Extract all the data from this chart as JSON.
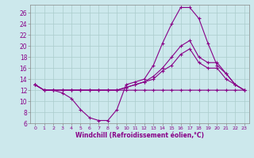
{
  "title": "",
  "xlabel": "Windchill (Refroidissement éolien,°C)",
  "background_color": "#cce8ec",
  "line_color": "#880088",
  "grid_color": "#aacccc",
  "xlim": [
    -0.5,
    23.5
  ],
  "ylim": [
    6,
    27.5
  ],
  "yticks": [
    6,
    8,
    10,
    12,
    14,
    16,
    18,
    20,
    22,
    24,
    26
  ],
  "xticks": [
    0,
    1,
    2,
    3,
    4,
    5,
    6,
    7,
    8,
    9,
    10,
    11,
    12,
    13,
    14,
    15,
    16,
    17,
    18,
    19,
    20,
    21,
    22,
    23
  ],
  "lines": [
    {
      "x": [
        0,
        1,
        2,
        3,
        4,
        5,
        6,
        7,
        8,
        9,
        10,
        11,
        12,
        13,
        14,
        15,
        16,
        17,
        18,
        19,
        20,
        21,
        22,
        23
      ],
      "y": [
        13,
        12,
        12,
        11.5,
        10.5,
        8.5,
        7,
        6.5,
        6.5,
        8.5,
        13,
        13.5,
        14,
        16.5,
        20.5,
        24,
        27,
        27,
        25,
        20.5,
        16.5,
        15,
        13,
        12
      ]
    },
    {
      "x": [
        0,
        1,
        2,
        3,
        4,
        5,
        6,
        7,
        8,
        9,
        10,
        11,
        12,
        13,
        14,
        15,
        16,
        17,
        18,
        19,
        20,
        21,
        22,
        23
      ],
      "y": [
        13,
        12,
        12,
        12,
        12,
        12,
        12,
        12,
        12,
        12,
        12,
        12,
        12,
        12,
        12,
        12,
        12,
        12,
        12,
        12,
        12,
        12,
        12,
        12
      ]
    },
    {
      "x": [
        0,
        1,
        2,
        3,
        4,
        5,
        6,
        7,
        8,
        9,
        10,
        11,
        12,
        13,
        14,
        15,
        16,
        17,
        18,
        19,
        20,
        21,
        22,
        23
      ],
      "y": [
        13,
        12,
        12,
        12,
        12,
        12,
        12,
        12,
        12,
        12,
        12.5,
        13,
        13.5,
        14.5,
        16,
        18,
        20,
        21,
        18,
        17,
        17,
        15,
        13,
        12
      ]
    },
    {
      "x": [
        0,
        1,
        2,
        3,
        4,
        5,
        6,
        7,
        8,
        9,
        10,
        11,
        12,
        13,
        14,
        15,
        16,
        17,
        18,
        19,
        20,
        21,
        22,
        23
      ],
      "y": [
        13,
        12,
        12,
        12,
        12,
        12,
        12,
        12,
        12,
        12,
        12.5,
        13,
        13.5,
        14,
        15.5,
        16.5,
        18.5,
        19.5,
        17,
        16,
        16,
        14,
        13,
        12
      ]
    }
  ]
}
